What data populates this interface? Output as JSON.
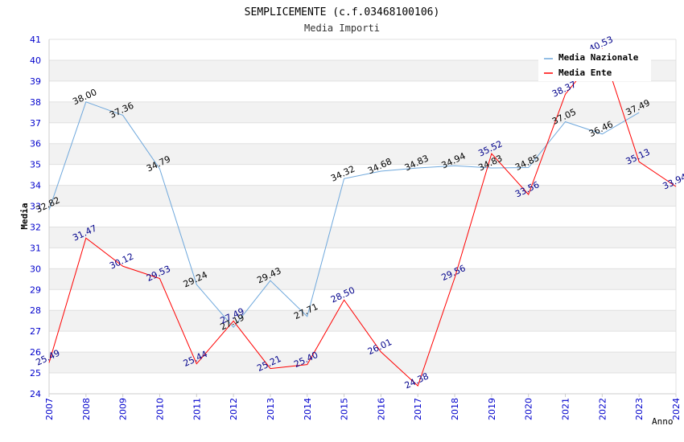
{
  "chart_data": {
    "type": "line",
    "title": "SEMPLICEMENTE (c.f.03468100106)",
    "subtitle": "Media Importi",
    "xlabel": "Anno",
    "ylabel": "Media",
    "ylim": [
      24,
      41
    ],
    "y_ticks": [
      24,
      25,
      26,
      27,
      28,
      29,
      30,
      31,
      32,
      33,
      34,
      35,
      36,
      37,
      38,
      39,
      40,
      41
    ],
    "categories": [
      "2007",
      "2008",
      "2009",
      "2010",
      "2011",
      "2012",
      "2013",
      "2014",
      "2015",
      "2016",
      "2017",
      "2018",
      "2019",
      "2020",
      "2021",
      "2022",
      "2023",
      "2024"
    ],
    "legend_position": "top-right",
    "series": [
      {
        "name": "Media Nazionale",
        "color": "#6fa8dc",
        "label_color": "#000000",
        "values": [
          32.82,
          38.0,
          37.36,
          34.79,
          29.24,
          27.19,
          29.43,
          27.71,
          34.32,
          34.68,
          34.83,
          34.94,
          34.83,
          34.85,
          37.05,
          36.46,
          37.49,
          null
        ],
        "labels": [
          "32.82",
          "38.00",
          "37.36",
          "34.79",
          "29.24",
          "27.19",
          "29.43",
          "27.71",
          "34.32",
          "34.68",
          "34.83",
          "34.94",
          "34.83",
          "34.85",
          "37.05",
          "36.46",
          "37.49",
          ""
        ]
      },
      {
        "name": "Media Ente",
        "color": "#ff0000",
        "label_color": "#00008b",
        "values": [
          25.49,
          31.47,
          30.12,
          29.53,
          25.44,
          27.49,
          25.21,
          25.4,
          28.5,
          26.01,
          24.38,
          29.56,
          35.52,
          33.56,
          38.37,
          40.53,
          35.13,
          33.94
        ],
        "labels": [
          "25.49",
          "31.47",
          "30.12",
          "29.53",
          "25.44",
          "27.49",
          "25.21",
          "25.40",
          "28.50",
          "26.01",
          "24.38",
          "29.56",
          "35.52",
          "33.56",
          "38.37",
          "40.53",
          "35.13",
          "33.94"
        ]
      }
    ]
  }
}
